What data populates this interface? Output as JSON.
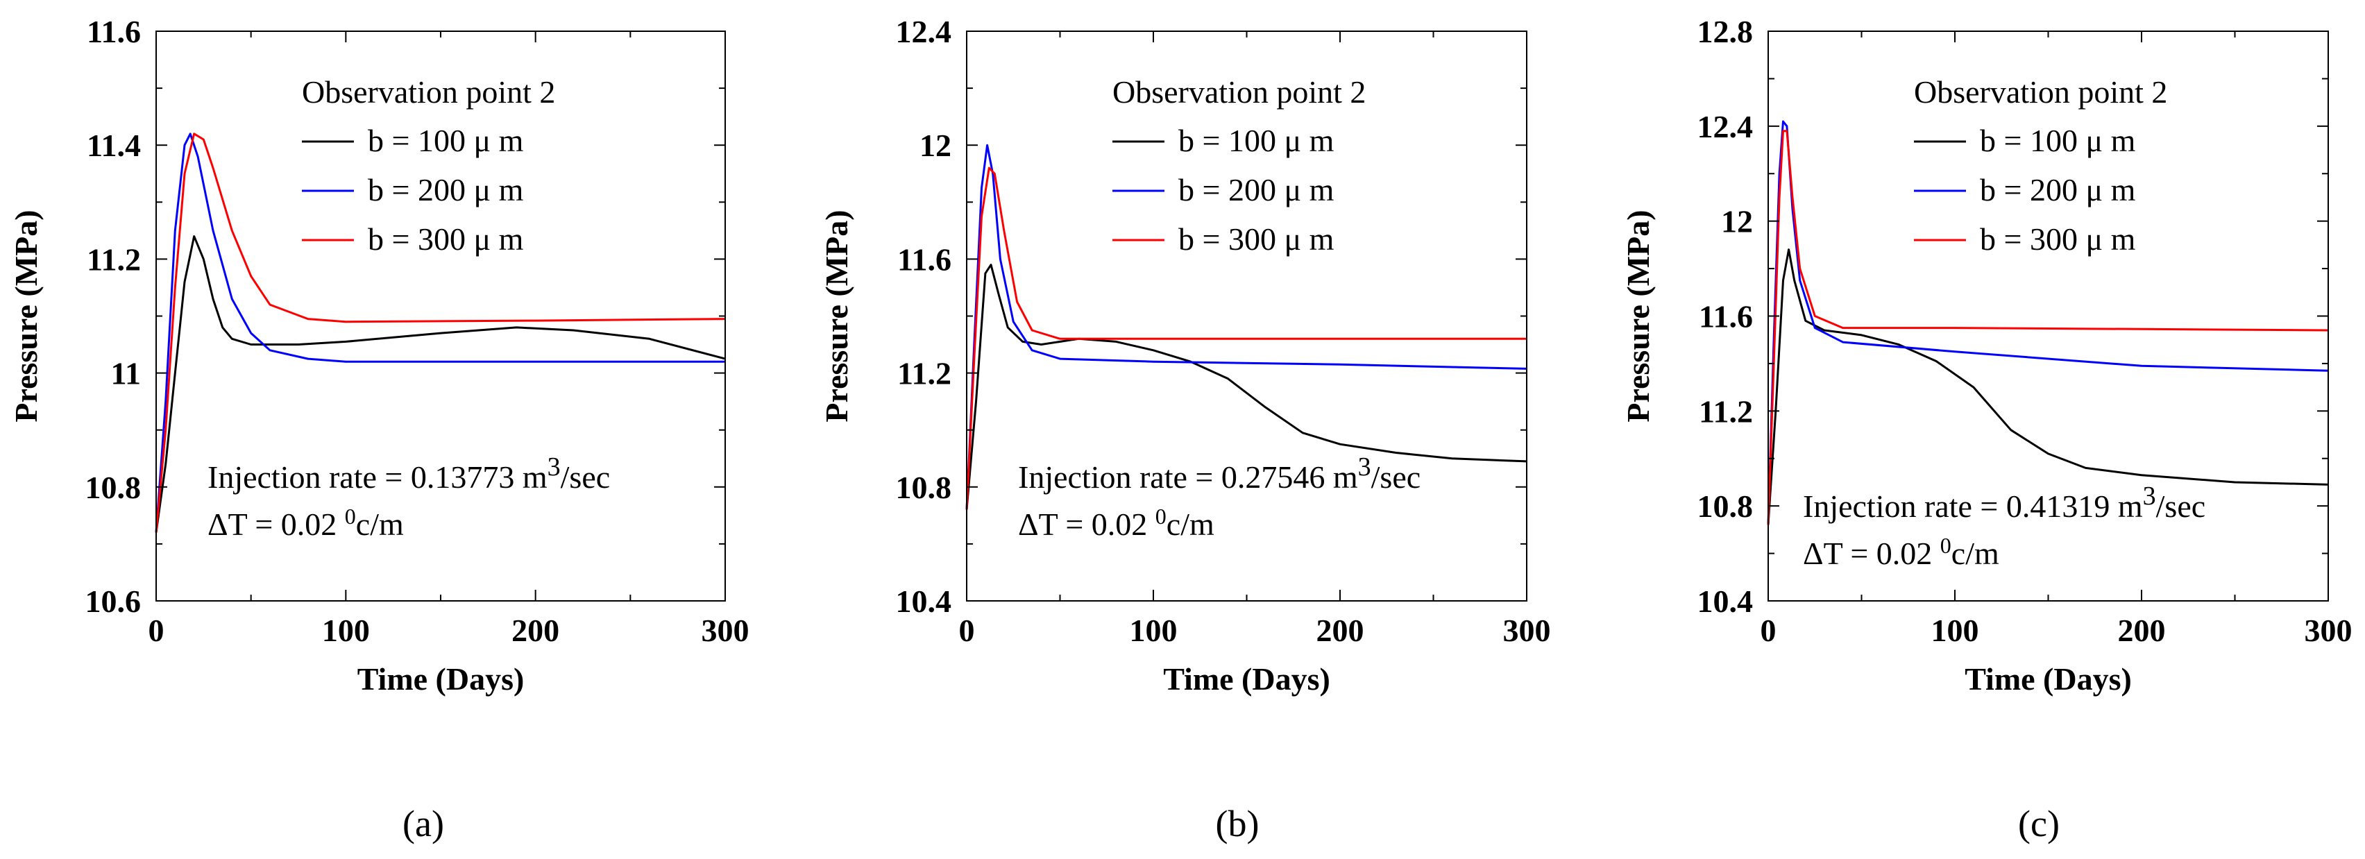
{
  "chart_data": [
    {
      "type": "line",
      "panel_label": "(a)",
      "xlabel": "Time (Days)",
      "ylabel": "Pressure (MPa)",
      "xlim": [
        0,
        300
      ],
      "ylim": [
        10.6,
        11.6
      ],
      "xticks": [
        0,
        100,
        200,
        300
      ],
      "xtick_labels": [
        "0",
        "100",
        "200",
        "300"
      ],
      "yticks": [
        10.6,
        10.8,
        11.0,
        11.2,
        11.4,
        11.6
      ],
      "ytick_labels": [
        "10.6",
        "10.8",
        "11",
        "11.2",
        "11.4",
        "11.6"
      ],
      "legend_title": "Observation point 2",
      "annotation_rate_prefix": "Injection rate = 0.13773 m",
      "annotation_rate_sup": "3",
      "annotation_rate_suffix": "/sec",
      "annotation_dt_prefix": "ΔT = 0.02 ",
      "annotation_dt_sup": "0",
      "annotation_dt_suffix": "c/m",
      "series": [
        {
          "name": "b = 100 μ m",
          "color": "#000000",
          "points": [
            [
              0,
              10.72
            ],
            [
              5,
              10.84
            ],
            [
              10,
              11.0
            ],
            [
              15,
              11.16
            ],
            [
              20,
              11.24
            ],
            [
              25,
              11.2
            ],
            [
              30,
              11.13
            ],
            [
              35,
              11.08
            ],
            [
              40,
              11.06
            ],
            [
              50,
              11.05
            ],
            [
              75,
              11.05
            ],
            [
              100,
              11.055
            ],
            [
              150,
              11.07
            ],
            [
              190,
              11.08
            ],
            [
              220,
              11.075
            ],
            [
              260,
              11.06
            ],
            [
              300,
              11.025
            ]
          ]
        },
        {
          "name": "b = 200 μ m",
          "color": "#0000ff",
          "points": [
            [
              0,
              10.72
            ],
            [
              5,
              10.95
            ],
            [
              10,
              11.25
            ],
            [
              15,
              11.4
            ],
            [
              18,
              11.42
            ],
            [
              22,
              11.38
            ],
            [
              30,
              11.25
            ],
            [
              40,
              11.13
            ],
            [
              50,
              11.07
            ],
            [
              60,
              11.04
            ],
            [
              80,
              11.025
            ],
            [
              100,
              11.02
            ],
            [
              200,
              11.02
            ],
            [
              300,
              11.02
            ]
          ]
        },
        {
          "name": "b = 300 μ m",
          "color": "#ff0000",
          "points": [
            [
              0,
              10.72
            ],
            [
              5,
              10.9
            ],
            [
              10,
              11.15
            ],
            [
              15,
              11.35
            ],
            [
              20,
              11.42
            ],
            [
              25,
              11.41
            ],
            [
              30,
              11.36
            ],
            [
              40,
              11.25
            ],
            [
              50,
              11.17
            ],
            [
              60,
              11.12
            ],
            [
              80,
              11.095
            ],
            [
              100,
              11.09
            ],
            [
              200,
              11.092
            ],
            [
              300,
              11.095
            ]
          ]
        }
      ]
    },
    {
      "type": "line",
      "panel_label": "(b)",
      "xlabel": "Time (Days)",
      "ylabel": "Pressure (MPa)",
      "xlim": [
        0,
        300
      ],
      "ylim": [
        10.4,
        12.4
      ],
      "xticks": [
        0,
        100,
        200,
        300
      ],
      "xtick_labels": [
        "0",
        "100",
        "200",
        "300"
      ],
      "yticks": [
        10.4,
        10.8,
        11.2,
        11.6,
        12.0,
        12.4
      ],
      "ytick_labels": [
        "10.4",
        "10.8",
        "11.2",
        "11.6",
        "12",
        "12.4"
      ],
      "legend_title": "Observation point 2",
      "annotation_rate_prefix": "Injection rate = 0.27546 m",
      "annotation_rate_sup": "3",
      "annotation_rate_suffix": "/sec",
      "annotation_dt_prefix": "ΔT = 0.02 ",
      "annotation_dt_sup": "0",
      "annotation_dt_suffix": "c/m",
      "series": [
        {
          "name": "b = 100 μ m",
          "color": "#000000",
          "points": [
            [
              0,
              10.72
            ],
            [
              5,
              11.1
            ],
            [
              10,
              11.55
            ],
            [
              13,
              11.58
            ],
            [
              17,
              11.48
            ],
            [
              22,
              11.36
            ],
            [
              30,
              11.31
            ],
            [
              40,
              11.3
            ],
            [
              60,
              11.32
            ],
            [
              80,
              11.31
            ],
            [
              100,
              11.28
            ],
            [
              120,
              11.24
            ],
            [
              140,
              11.18
            ],
            [
              160,
              11.08
            ],
            [
              180,
              10.99
            ],
            [
              200,
              10.95
            ],
            [
              230,
              10.92
            ],
            [
              260,
              10.9
            ],
            [
              300,
              10.89
            ]
          ]
        },
        {
          "name": "b = 200 μ m",
          "color": "#0000ff",
          "points": [
            [
              0,
              10.72
            ],
            [
              4,
              11.3
            ],
            [
              8,
              11.85
            ],
            [
              11,
              12.0
            ],
            [
              14,
              11.9
            ],
            [
              18,
              11.6
            ],
            [
              25,
              11.38
            ],
            [
              35,
              11.28
            ],
            [
              50,
              11.25
            ],
            [
              100,
              11.24
            ],
            [
              200,
              11.23
            ],
            [
              300,
              11.215
            ]
          ]
        },
        {
          "name": "b = 300 μ m",
          "color": "#ff0000",
          "points": [
            [
              0,
              10.72
            ],
            [
              4,
              11.25
            ],
            [
              8,
              11.75
            ],
            [
              12,
              11.92
            ],
            [
              15,
              11.9
            ],
            [
              20,
              11.7
            ],
            [
              27,
              11.45
            ],
            [
              35,
              11.35
            ],
            [
              50,
              11.32
            ],
            [
              100,
              11.32
            ],
            [
              200,
              11.32
            ],
            [
              300,
              11.32
            ]
          ]
        }
      ]
    },
    {
      "type": "line",
      "panel_label": "(c)",
      "xlabel": "Time (Days)",
      "ylabel": "Pressure (MPa)",
      "xlim": [
        0,
        300
      ],
      "ylim": [
        10.4,
        12.8
      ],
      "xticks": [
        0,
        100,
        200,
        300
      ],
      "xtick_labels": [
        "0",
        "100",
        "200",
        "300"
      ],
      "yticks": [
        10.4,
        10.8,
        11.2,
        11.6,
        12.0,
        12.4,
        12.8
      ],
      "ytick_labels": [
        "10.4",
        "10.8",
        "11.2",
        "11.6",
        "12",
        "12.4",
        "12.8"
      ],
      "legend_title": "Observation point 2",
      "annotation_rate_prefix": "Injection rate = 0.41319 m",
      "annotation_rate_sup": "3",
      "annotation_rate_suffix": "/sec",
      "annotation_dt_prefix": "ΔT = 0.02 ",
      "annotation_dt_sup": "0",
      "annotation_dt_suffix": "c/m",
      "series": [
        {
          "name": "b = 100 μ m",
          "color": "#000000",
          "points": [
            [
              0,
              10.72
            ],
            [
              4,
              11.2
            ],
            [
              8,
              11.75
            ],
            [
              11,
              11.88
            ],
            [
              14,
              11.75
            ],
            [
              20,
              11.58
            ],
            [
              30,
              11.54
            ],
            [
              50,
              11.52
            ],
            [
              70,
              11.48
            ],
            [
              90,
              11.41
            ],
            [
              110,
              11.3
            ],
            [
              130,
              11.12
            ],
            [
              150,
              11.02
            ],
            [
              170,
              10.96
            ],
            [
              200,
              10.93
            ],
            [
              250,
              10.9
            ],
            [
              300,
              10.89
            ]
          ]
        },
        {
          "name": "b = 200 μ m",
          "color": "#0000ff",
          "points": [
            [
              0,
              10.72
            ],
            [
              3,
              11.5
            ],
            [
              6,
              12.2
            ],
            [
              8,
              12.42
            ],
            [
              10,
              12.4
            ],
            [
              13,
              12.05
            ],
            [
              17,
              11.75
            ],
            [
              25,
              11.55
            ],
            [
              40,
              11.49
            ],
            [
              100,
              11.45
            ],
            [
              200,
              11.39
            ],
            [
              300,
              11.37
            ]
          ]
        },
        {
          "name": "b = 300 μ m",
          "color": "#ff0000",
          "points": [
            [
              0,
              10.72
            ],
            [
              3,
              11.4
            ],
            [
              6,
              12.1
            ],
            [
              8,
              12.38
            ],
            [
              10,
              12.38
            ],
            [
              13,
              12.1
            ],
            [
              17,
              11.8
            ],
            [
              25,
              11.6
            ],
            [
              40,
              11.55
            ],
            [
              100,
              11.55
            ],
            [
              200,
              11.545
            ],
            [
              300,
              11.54
            ]
          ]
        }
      ]
    }
  ]
}
